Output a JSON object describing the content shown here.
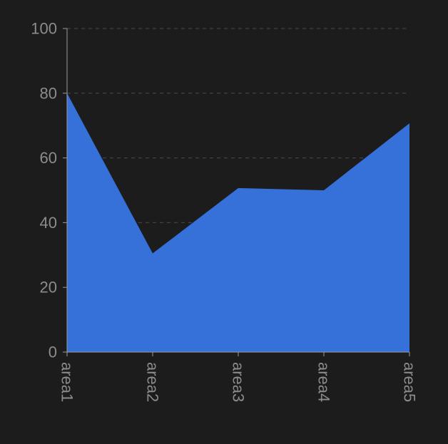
{
  "colors": {
    "background": "#1c1c1c",
    "area_fill": "#3670d9",
    "axis": "#9a9a9a",
    "grid": "#4a4a4a",
    "label": "#8c8c8c"
  },
  "chart_data": {
    "type": "area",
    "title": "",
    "xlabel": "",
    "ylabel": "",
    "categories": [
      "area1",
      "area2",
      "area3",
      "area4",
      "area5"
    ],
    "series": [
      {
        "values": [
          80,
          30.5,
          50.7,
          50,
          70.7
        ]
      }
    ],
    "ylim": [
      0,
      100
    ],
    "yticks": [
      0,
      20,
      40,
      60,
      80,
      100
    ],
    "grid": "horizontal-dashed",
    "legend": "none",
    "x_tick_label_rotation": "vertical"
  }
}
